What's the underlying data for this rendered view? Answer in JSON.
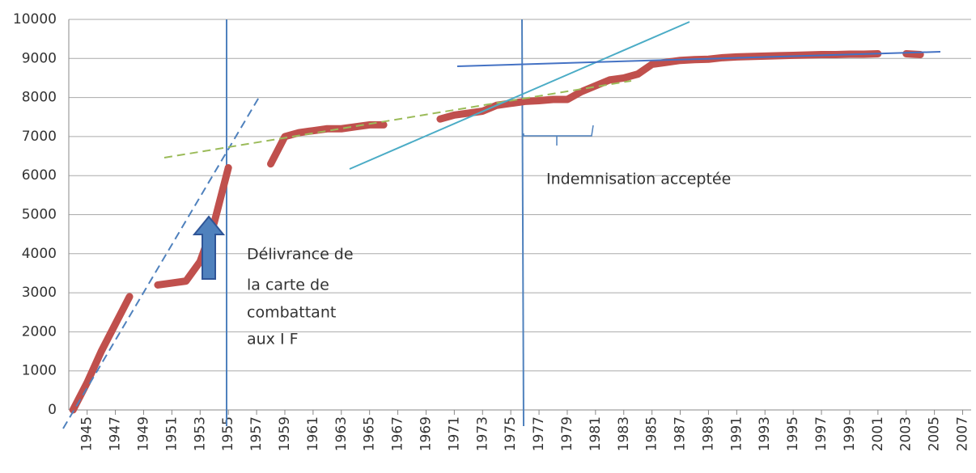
{
  "chart_data": {
    "type": "line",
    "x": [
      1944,
      1945,
      1946,
      1947,
      1948,
      1949,
      1950,
      1951,
      1952,
      1953,
      1954,
      1955,
      1956,
      1957,
      1958,
      1959,
      1960,
      1961,
      1962,
      1963,
      1964,
      1965,
      1966,
      1967,
      1968,
      1969,
      1970,
      1971,
      1972,
      1973,
      1974,
      1975,
      1976,
      1977,
      1978,
      1979,
      1980,
      1981,
      1982,
      1983,
      1984,
      1985,
      1986,
      1987,
      1988,
      1989,
      1990,
      1991,
      1992,
      1993,
      1994,
      1995,
      1996,
      1997,
      1998,
      1999,
      2000,
      2001,
      2002,
      2003,
      2004
    ],
    "series": [
      {
        "color": "#c0504d",
        "values": [
          0,
          700,
          1500,
          2200,
          2900,
          null,
          3200,
          3250,
          3300,
          3800,
          4800,
          6200,
          null,
          null,
          6300,
          7000,
          7100,
          7150,
          7200,
          7200,
          7250,
          7300,
          7300,
          null,
          null,
          null,
          7450,
          7550,
          7600,
          7650,
          7800,
          7850,
          7900,
          7920,
          7950,
          7950,
          8150,
          8300,
          8450,
          8500,
          8600,
          8850,
          8900,
          8950,
          8970,
          8980,
          9020,
          9040,
          9050,
          9060,
          9070,
          9080,
          9090,
          9100,
          9100,
          9110,
          9110,
          9120,
          null,
          9120,
          9100
        ]
      }
    ],
    "xlim": [
      1943.7,
      2007.6
    ],
    "xticks": [
      1945,
      1947,
      1949,
      1951,
      1953,
      1955,
      1957,
      1959,
      1961,
      1963,
      1965,
      1967,
      1969,
      1971,
      1973,
      1975,
      1977,
      1979,
      1981,
      1983,
      1985,
      1987,
      1989,
      1991,
      1993,
      1995,
      1997,
      1999,
      2001,
      2003,
      2005,
      2007
    ],
    "ylim": [
      0,
      10000
    ],
    "yticks": [
      0,
      1000,
      2000,
      3000,
      4000,
      5000,
      6000,
      7000,
      8000,
      9000,
      10000
    ],
    "grid": true,
    "annotations": [
      {
        "lines": [
          "Délivrance de",
          "la carte de",
          "combattant",
          "aux I F"
        ]
      },
      {
        "lines": [
          "Indemnisation acceptée"
        ]
      }
    ]
  }
}
